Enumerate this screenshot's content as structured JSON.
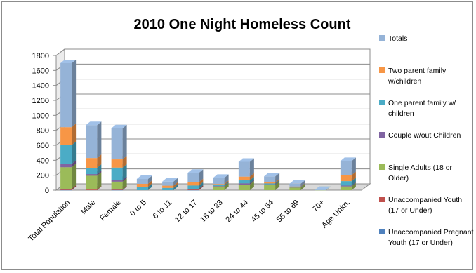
{
  "chart_data": {
    "type": "bar",
    "stacked": true,
    "style": "3d-column",
    "title": "2010 One Night Homeless Count",
    "xlabel": "",
    "ylabel": "",
    "ylim": [
      0,
      1800
    ],
    "yticks": [
      0,
      200,
      400,
      600,
      800,
      1000,
      1200,
      1400,
      1600,
      1800
    ],
    "grid": true,
    "legend_position": "right",
    "categories": [
      "Total Population",
      "Male",
      "Female",
      "0 to 5",
      "6 to 11",
      "12 to 17",
      "18 to 23",
      "24 to 44",
      "45 to 54",
      "55 to 69",
      "70+",
      "Age Unkn."
    ],
    "series": [
      {
        "name": "Unaccompanied Pregnant Youth (17 or Under)",
        "color": "#4f81bd",
        "values": [
          2,
          0,
          2,
          0,
          0,
          2,
          0,
          0,
          0,
          0,
          0,
          0
        ]
      },
      {
        "name": "Unaccompanied Youth (17 or Under)",
        "color": "#c0504d",
        "values": [
          15,
          8,
          7,
          0,
          0,
          15,
          0,
          0,
          0,
          0,
          0,
          0
        ]
      },
      {
        "name": "Single Adults (18 or Older)",
        "color": "#9bbb59",
        "values": [
          290,
          185,
          105,
          0,
          0,
          0,
          50,
          75,
          70,
          35,
          2,
          50
        ]
      },
      {
        "name": "Couple w/out Children",
        "color": "#8064a2",
        "values": [
          45,
          22,
          23,
          0,
          0,
          0,
          6,
          16,
          8,
          4,
          0,
          11
        ]
      },
      {
        "name": "One parent family w/ children",
        "color": "#4bacc6",
        "values": [
          250,
          85,
          165,
          45,
          30,
          45,
          12,
          40,
          12,
          4,
          0,
          60
        ]
      },
      {
        "name": "Two parent family w/children",
        "color": "#f79646",
        "values": [
          240,
          130,
          110,
          40,
          30,
          45,
          14,
          50,
          16,
          6,
          0,
          80
        ]
      },
      {
        "name": "Totals",
        "color": "#95b3d7",
        "values": [
          855,
          440,
          415,
          65,
          55,
          125,
          83,
          199,
          79,
          36,
          2,
          189
        ]
      }
    ]
  }
}
